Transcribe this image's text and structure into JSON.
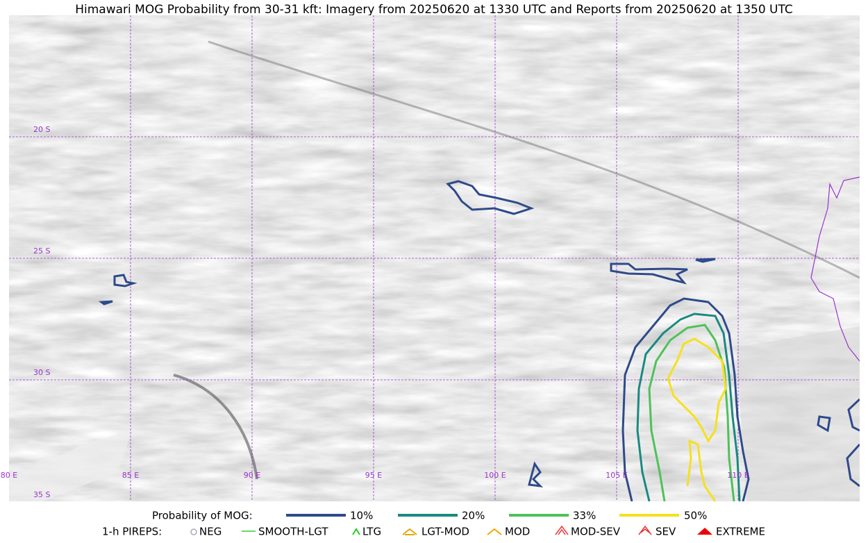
{
  "title": "Himawari MOG Probability from 30-31 kft: Imagery from 20250620 at 1330 UTC and Reports from 20250620 at 1350 UTC",
  "map": {
    "lat_labels": [
      "20 S",
      "25 S",
      "30 S",
      "35 S"
    ],
    "lon_labels": [
      "80 E",
      "85 E",
      "90 E",
      "95 E",
      "100 E",
      "105 E",
      "110 E"
    ]
  },
  "legend": {
    "probability_title": "Probability of MOG:",
    "probability_entries": [
      "10%",
      "20%",
      "33%",
      "50%"
    ],
    "pireps_title": "1-h PIREPS:",
    "pireps_entries": [
      "NEG",
      "SMOOTH-LGT",
      "LTG",
      "LGT-MOD",
      "MOD",
      "MOD-SEV",
      "SEV",
      "EXTREME"
    ]
  }
}
